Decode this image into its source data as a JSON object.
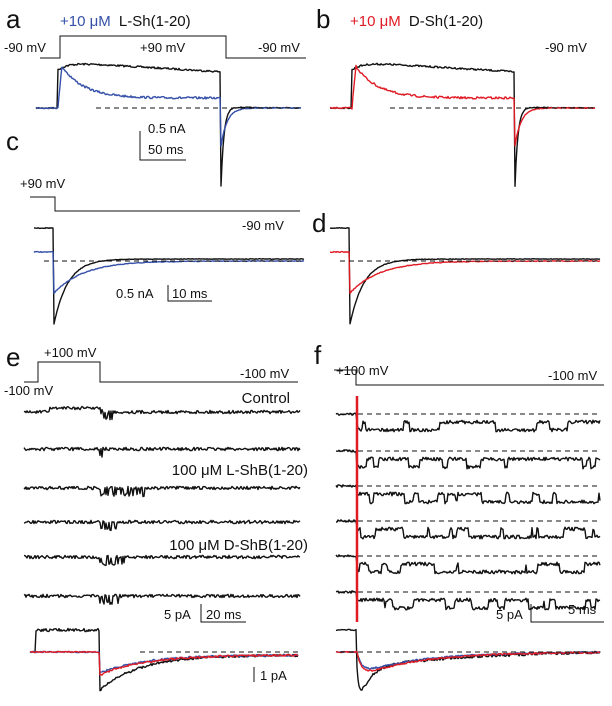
{
  "colors": {
    "black": "#111111",
    "blue": "#3450a8",
    "red": "#e01b24"
  },
  "panel_a": {
    "letter": "a",
    "conc": "+10 μM",
    "peptide": "L-Sh(1-20)",
    "v_hold_left": "-90 mV",
    "v_step": "+90 mV",
    "v_hold_right": "-90 mV",
    "scale_i": "0.5 nA",
    "scale_t": "50 ms"
  },
  "panel_b": {
    "letter": "b",
    "conc": "+10 μM",
    "peptide": "D-Sh(1-20)",
    "v_hold_right": "-90 mV"
  },
  "panel_c": {
    "letter": "c",
    "v_step": "+90 mV",
    "v_hold": "-90 mV",
    "scale_i": "0.5 nA",
    "scale_t": "10 ms"
  },
  "panel_d": {
    "letter": "d"
  },
  "panel_e": {
    "letter": "e",
    "v_step": "+100 mV",
    "v_hold_left": "-100 mV",
    "v_hold_right": "-100 mV",
    "control": "Control",
    "l_label": "100 μM L-ShB(1-20)",
    "d_label": "100 μM D-ShB(1-20)",
    "scale_i": "5 pA",
    "scale_t": "20 ms",
    "avg_scale": "1 pA"
  },
  "panel_f": {
    "letter": "f",
    "v_step": "+100 mV",
    "v_hold": "-100 mV",
    "scale_i": "5 pA",
    "scale_t": "5 ms"
  }
}
